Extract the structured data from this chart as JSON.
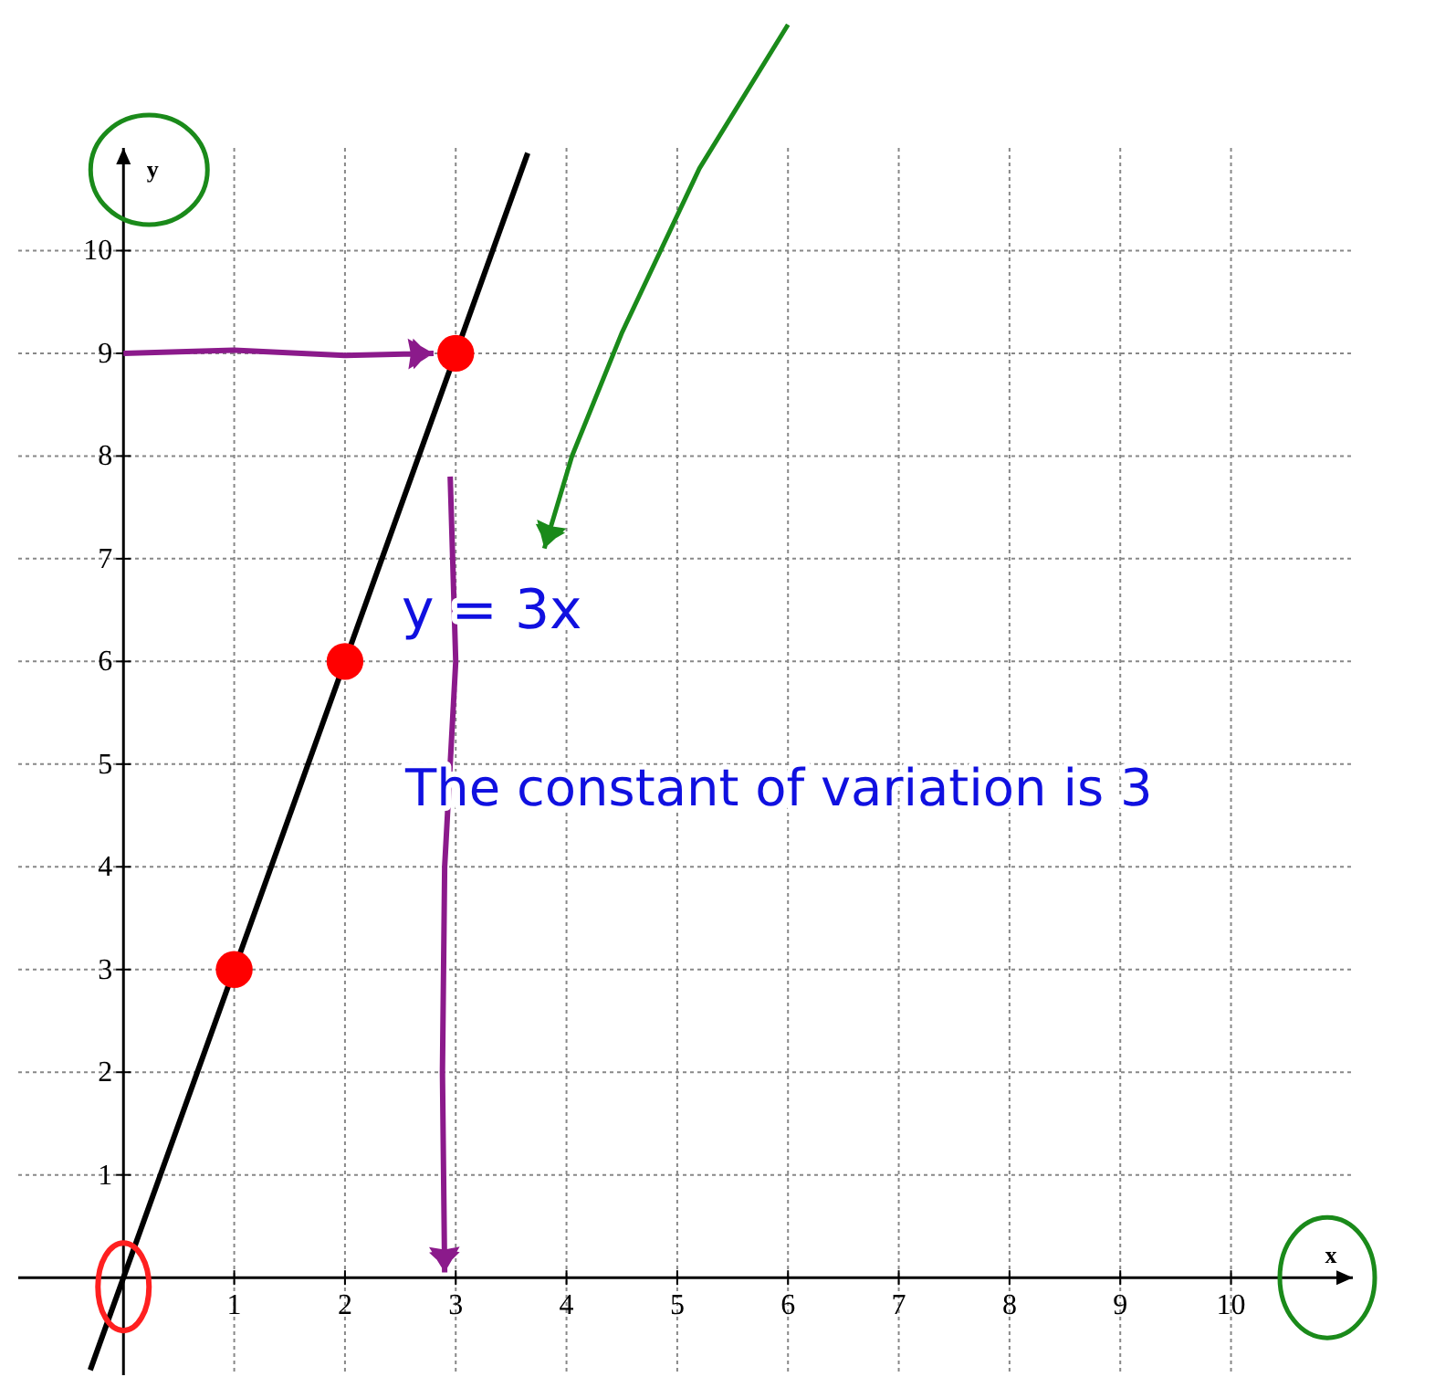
{
  "chart_data": {
    "type": "scatter",
    "xlabel": "x",
    "ylabel": "y",
    "xlim": [
      -0.95,
      11.1
    ],
    "ylim": [
      -0.95,
      11
    ],
    "xticks": [
      1,
      2,
      3,
      4,
      5,
      6,
      7,
      8,
      9,
      10
    ],
    "yticks": [
      1,
      2,
      3,
      4,
      5,
      6,
      7,
      8,
      9,
      10
    ],
    "grid": true,
    "series": [
      {
        "type": "line",
        "color": "#000000",
        "x": [
          -0.3,
          3.65
        ],
        "values": [
          -0.9,
          10.95
        ],
        "line_style": "solid"
      },
      {
        "color": "#ff0000",
        "marker": "circle",
        "x": [
          1,
          2,
          3
        ],
        "values": [
          3,
          6,
          9
        ]
      }
    ],
    "annotations": [
      "y = 3x",
      "The constant of variation is 3"
    ]
  }
}
